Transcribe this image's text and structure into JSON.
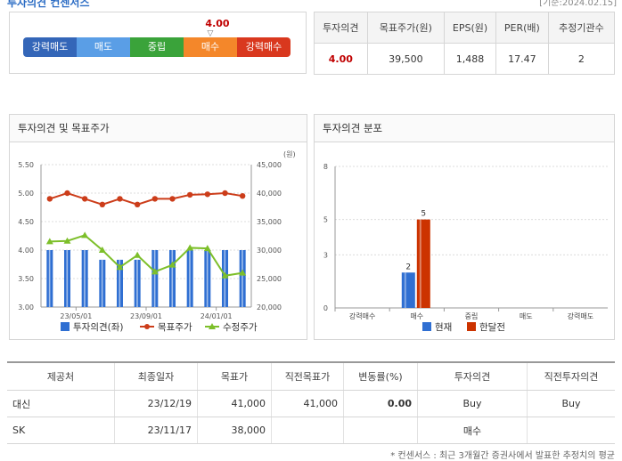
{
  "header": {
    "title": "투자의견 컨센서스",
    "date": "[기준:2024.02.15]"
  },
  "opinion": {
    "score": "4.00",
    "score_value": 4.0,
    "levels": [
      "강력매도",
      "매도",
      "중립",
      "매수",
      "강력매수"
    ],
    "level_colors": [
      "#3466b8",
      "#5a9ee6",
      "#3aa33a",
      "#f4872a",
      "#d9381e"
    ]
  },
  "summary": {
    "headers": [
      "투자의견",
      "목표주가(원)",
      "EPS(원)",
      "PER(배)",
      "추정기관수"
    ],
    "values": [
      "4.00",
      "39,500",
      "1,488",
      "17.47",
      "2"
    ]
  },
  "left_panel": {
    "title": "투자의견 및 목표주가"
  },
  "right_panel": {
    "title": "투자의견 분포"
  },
  "chart_data": [
    {
      "type": "bar+line",
      "title": "투자의견 및 목표주가",
      "y_left": {
        "ticks": [
          "3.00",
          "3.50",
          "4.00",
          "4.50",
          "5.00",
          "5.50"
        ],
        "range": [
          3.0,
          5.5
        ]
      },
      "y_right": {
        "unit": "(원)",
        "ticks": [
          "20,000",
          "25,000",
          "30,000",
          "35,000",
          "40,000",
          "45,000"
        ],
        "range": [
          20000,
          45000
        ]
      },
      "x_ticks": [
        "23/05/01",
        "23/09/01",
        "24/01/01"
      ],
      "series": [
        {
          "name": "투자의견(좌)",
          "type": "bar",
          "color": "#2f6fd2",
          "values": [
            4.0,
            4.0,
            4.0,
            3.83,
            3.83,
            3.83,
            4.0,
            4.0,
            4.0,
            4.0,
            4.0,
            4.0
          ]
        },
        {
          "name": "목표주가",
          "type": "line",
          "color": "#cc3d1a",
          "values": [
            39000,
            40000,
            39000,
            38000,
            39000,
            38000,
            39000,
            39000,
            39700,
            39800,
            40000,
            39500
          ]
        },
        {
          "name": "수정주가",
          "type": "line",
          "color": "#7dbf2a",
          "values": [
            31500,
            31600,
            32600,
            30000,
            27000,
            29100,
            26200,
            27400,
            30400,
            30300,
            25500,
            26000
          ]
        }
      ]
    },
    {
      "type": "bar",
      "title": "투자의견 분포",
      "categories": [
        "강력매수",
        "매수",
        "중립",
        "매도",
        "강력매도"
      ],
      "y_ticks": [
        "0",
        "3",
        "5",
        "8"
      ],
      "ylim": [
        0,
        8
      ],
      "series": [
        {
          "name": "현재",
          "color": "#2f6fd2",
          "values": [
            0,
            2,
            0,
            0,
            0
          ],
          "labels": [
            "",
            "2",
            "",
            "",
            ""
          ]
        },
        {
          "name": "한달전",
          "color": "#cc3300",
          "values": [
            0,
            5,
            0,
            0,
            0
          ],
          "labels": [
            "",
            "5",
            "",
            "",
            ""
          ]
        }
      ]
    }
  ],
  "table": {
    "headers": [
      "제공처",
      "최종일자",
      "목표가",
      "직전목표가",
      "변동률(%)",
      "투자의견",
      "직전투자의견"
    ],
    "rows": [
      [
        "대신",
        "23/12/19",
        "41,000",
        "41,000",
        "0.00",
        "Buy",
        "Buy"
      ],
      [
        "SK",
        "23/11/17",
        "38,000",
        "",
        "",
        "매수",
        ""
      ]
    ]
  },
  "footnote": "* 컨센서스 : 최근 3개월간 증권사에서 발표한 추정치의 평균"
}
